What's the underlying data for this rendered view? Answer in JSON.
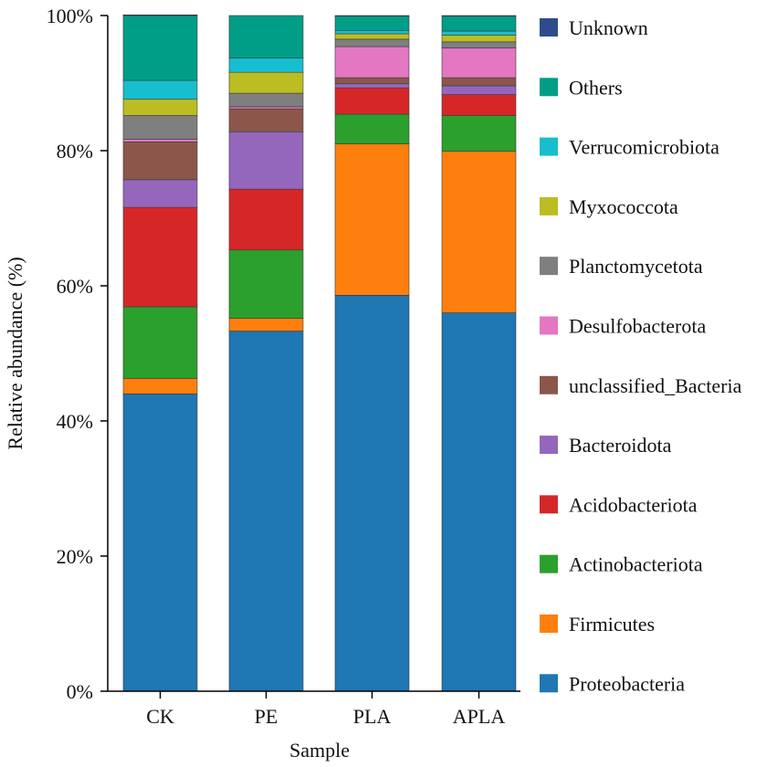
{
  "chart_data": {
    "type": "bar",
    "stacked": true,
    "title": "",
    "xlabel": "Sample",
    "ylabel": "Relative abundance (%)",
    "ylim": [
      0,
      100
    ],
    "yticks": [
      0,
      20,
      40,
      60,
      80,
      100
    ],
    "ytick_labels": [
      "0%",
      "20%",
      "40%",
      "60%",
      "80%",
      "100%"
    ],
    "categories": [
      "CK",
      "PE",
      "PLA",
      "APLA"
    ],
    "legend_position": "right",
    "series": [
      {
        "name": "Proteobacteria",
        "color": "#1f77b4",
        "values": [
          44.0,
          53.3,
          58.6,
          56.0
        ]
      },
      {
        "name": "Firmicutes",
        "color": "#ff7f0e",
        "values": [
          2.3,
          1.9,
          22.4,
          23.9
        ]
      },
      {
        "name": "Actinobacteriota",
        "color": "#2ca02c",
        "values": [
          10.6,
          10.1,
          4.4,
          5.3
        ]
      },
      {
        "name": "Acidobacteriota",
        "color": "#d62728",
        "values": [
          14.7,
          9.0,
          3.9,
          3.1
        ]
      },
      {
        "name": "Bacteroidota",
        "color": "#9467bd",
        "values": [
          4.1,
          8.5,
          0.6,
          1.3
        ]
      },
      {
        "name": "unclassified_Bacteria",
        "color": "#8c564b",
        "values": [
          5.6,
          3.4,
          0.9,
          1.2
        ]
      },
      {
        "name": "Desulfobacterota",
        "color": "#e377c2",
        "values": [
          0.4,
          0.3,
          4.6,
          4.4
        ]
      },
      {
        "name": "Planctomycetota",
        "color": "#7f7f7f",
        "values": [
          3.5,
          2.0,
          1.1,
          0.9
        ]
      },
      {
        "name": "Myxococcota",
        "color": "#bcbd22",
        "values": [
          2.4,
          3.1,
          0.8,
          1.0
        ]
      },
      {
        "name": "Verrucomicrobiota",
        "color": "#17becf",
        "values": [
          2.8,
          2.1,
          0.5,
          0.6
        ]
      },
      {
        "name": "Others",
        "color": "#009e86",
        "values": [
          9.6,
          6.3,
          2.1,
          2.2
        ]
      },
      {
        "name": "Unknown",
        "color": "#2e4c8c",
        "values": [
          0.1,
          0.0,
          0.1,
          0.1
        ]
      }
    ]
  }
}
